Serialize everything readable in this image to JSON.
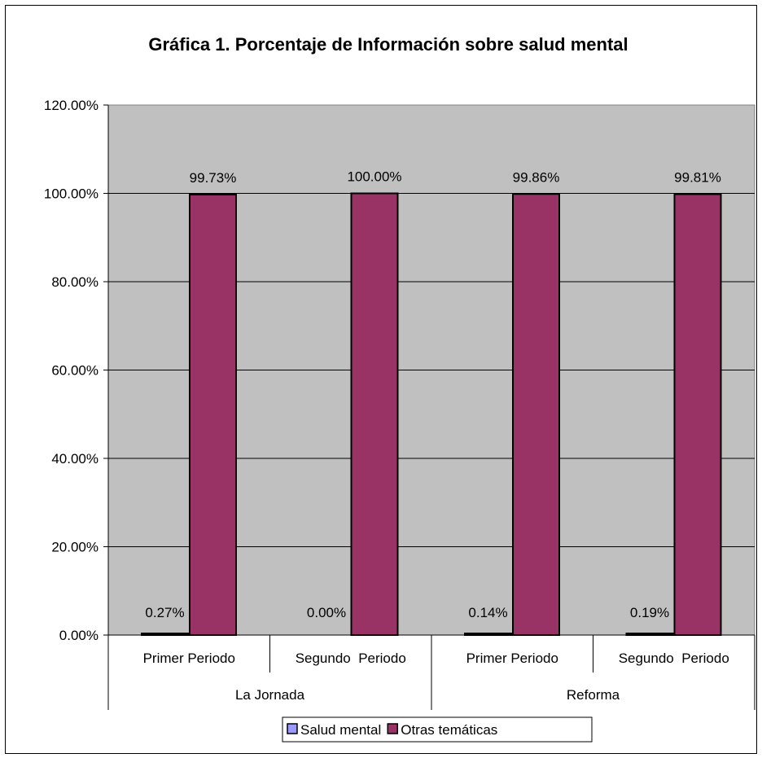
{
  "chart_data": {
    "type": "bar",
    "title": "Gráfica 1. Porcentaje de Información sobre salud  mental",
    "xlabel": "",
    "ylabel": "",
    "ylim": [
      0,
      1.2
    ],
    "yticks": [
      0,
      0.2,
      0.4,
      0.6,
      0.8,
      1.0,
      1.2
    ],
    "ytick_labels": [
      "0.00%",
      "20.00%",
      "40.00%",
      "60.00%",
      "80.00%",
      "100.00%",
      "120.00%"
    ],
    "groups": [
      "La Jornada",
      "Reforma"
    ],
    "categories": [
      "Primer Periodo",
      "Segundo  Periodo",
      "Primer Periodo",
      "Segundo  Periodo"
    ],
    "category_groups": [
      0,
      0,
      1,
      1
    ],
    "series": [
      {
        "name": "Salud mental",
        "color": "#9999ff",
        "values": [
          0.0027,
          0.0,
          0.0014,
          0.0019
        ],
        "labels": [
          "0.27%",
          "0.00%",
          "0.14%",
          "0.19%"
        ]
      },
      {
        "name": "Otras temáticas",
        "color": "#993366",
        "values": [
          0.9973,
          1.0,
          0.9986,
          0.9981
        ],
        "labels": [
          "99.73%",
          "100.00%",
          "99.86%",
          "99.81%"
        ]
      }
    ],
    "grid": true,
    "legend_position": "bottom",
    "plot_background": "#c0c0c0"
  }
}
